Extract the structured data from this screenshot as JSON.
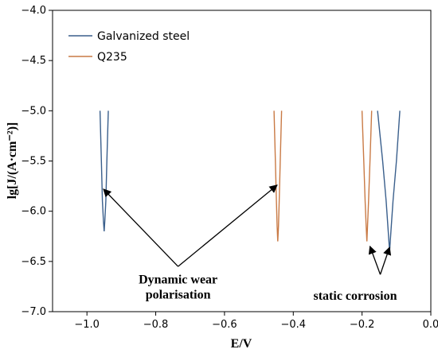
{
  "chart_data": {
    "type": "line",
    "xlabel": "E/V",
    "ylabel": "lg[J/(A·cm⁻²)]",
    "xlim": [
      -1.1,
      0.0
    ],
    "ylim": [
      -7.0,
      -4.0
    ],
    "x_ticks": [
      -1.0,
      -0.8,
      -0.6,
      -0.4,
      -0.2,
      0.0
    ],
    "x_tick_labels": [
      "−1.0",
      "−0.8",
      "−0.6",
      "−0.4",
      "−0.2",
      "0.0"
    ],
    "y_ticks": [
      -4.0,
      -4.5,
      -5.0,
      -5.5,
      -6.0,
      -6.5,
      -7.0
    ],
    "y_tick_labels": [
      "−4.0",
      "−4.5",
      "−5.0",
      "−5.5",
      "−6.0",
      "−6.5",
      "−7.0"
    ],
    "legend_position": "top-left",
    "series": [
      {
        "name": "Galvanized steel",
        "color": "#3a5f8c",
        "curves": [
          {
            "x": [
              -0.962,
              -0.958,
              -0.955,
              -0.952,
              -0.95,
              -0.948,
              -0.945,
              -0.942,
              -0.938
            ],
            "y": [
              -5.0,
              -5.5,
              -5.9,
              -6.1,
              -6.2,
              -6.1,
              -5.9,
              -5.5,
              -5.0
            ]
          },
          {
            "x": [
              -0.155,
              -0.14,
              -0.13,
              -0.124,
              -0.12,
              -0.116,
              -0.11,
              -0.1,
              -0.09
            ],
            "y": [
              -5.0,
              -5.5,
              -5.9,
              -6.2,
              -6.4,
              -6.2,
              -5.9,
              -5.5,
              -5.0
            ]
          }
        ]
      },
      {
        "name": "Q235",
        "color": "#c97a45",
        "curves": [
          {
            "x": [
              -0.456,
              -0.452,
              -0.449,
              -0.447,
              -0.445,
              -0.443,
              -0.441,
              -0.438,
              -0.434
            ],
            "y": [
              -5.0,
              -5.5,
              -5.9,
              -6.15,
              -6.3,
              -6.15,
              -5.9,
              -5.5,
              -5.0
            ]
          },
          {
            "x": [
              -0.2,
              -0.195,
              -0.191,
              -0.188,
              -0.186,
              -0.184,
              -0.181,
              -0.177,
              -0.172
            ],
            "y": [
              -5.0,
              -5.5,
              -5.9,
              -6.15,
              -6.3,
              -6.15,
              -5.9,
              -5.5,
              -5.0
            ]
          }
        ]
      }
    ],
    "annotations": [
      {
        "lines": [
          "Dynamic wear",
          "polarisation"
        ],
        "text_x": -0.735,
        "text_y": -6.72,
        "arrow_origin": [
          -0.735,
          -6.55
        ],
        "targets": [
          [
            -0.952,
            -5.78
          ],
          [
            -0.447,
            -5.74
          ]
        ]
      },
      {
        "lines": [
          "static corrosion"
        ],
        "text_x": -0.22,
        "text_y": -6.88,
        "arrow_origin": [
          -0.147,
          -6.63
        ],
        "targets": [
          [
            -0.177,
            -6.35
          ],
          [
            -0.12,
            -6.36
          ]
        ]
      }
    ]
  }
}
